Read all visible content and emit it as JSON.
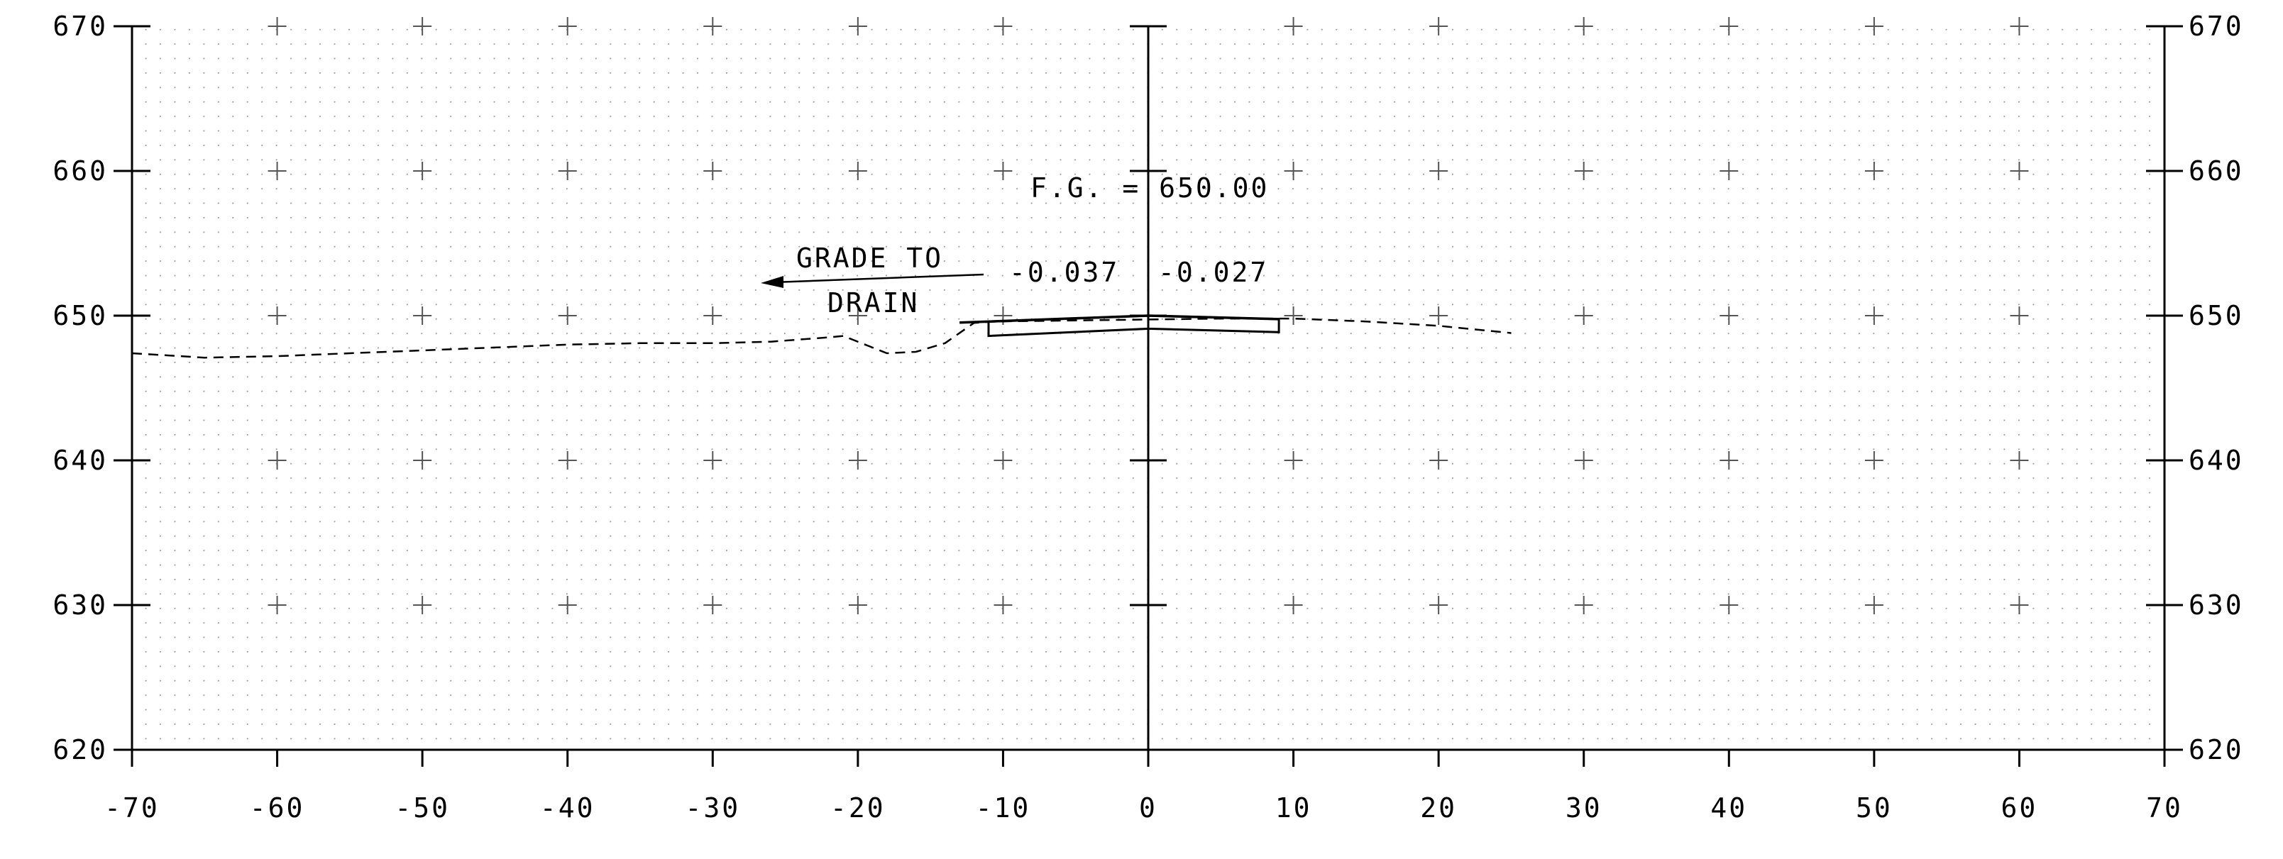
{
  "chart_data": {
    "type": "cross-section",
    "x_range": [
      -70,
      70
    ],
    "y_range": [
      620,
      670
    ],
    "x_ticks": [
      -70,
      -60,
      -50,
      -40,
      -30,
      -20,
      -10,
      0,
      10,
      20,
      30,
      40,
      50,
      60,
      70
    ],
    "y_ticks": [
      620,
      630,
      640,
      650,
      660,
      670
    ],
    "grid": "dotted minor grid with plus markers at major intersections",
    "existing_ground": [
      [
        -70,
        647.4
      ],
      [
        -65,
        647.1
      ],
      [
        -60,
        647.2
      ],
      [
        -55,
        647.4
      ],
      [
        -50,
        647.6
      ],
      [
        -45,
        647.8
      ],
      [
        -40,
        648.0
      ],
      [
        -35,
        648.1
      ],
      [
        -30,
        648.1
      ],
      [
        -26,
        648.2
      ],
      [
        -22,
        648.5
      ],
      [
        -21,
        648.6
      ],
      [
        -19,
        647.8
      ],
      [
        -18,
        647.4
      ],
      [
        -16,
        647.5
      ],
      [
        -14,
        648.1
      ],
      [
        -12,
        649.5
      ],
      [
        -10.5,
        649.6
      ],
      [
        5,
        649.8
      ],
      [
        10,
        649.8
      ],
      [
        15,
        649.6
      ],
      [
        20,
        649.3
      ],
      [
        25,
        648.8
      ]
    ],
    "finished_grade": [
      [
        -13,
        649.52
      ],
      [
        0,
        650.0
      ],
      [
        9,
        649.76
      ]
    ],
    "pavement_left": [
      [
        -11,
        649.59
      ],
      [
        0,
        650.0
      ],
      [
        0,
        649.1
      ],
      [
        -11,
        648.6
      ]
    ],
    "pavement_right": [
      [
        0,
        650.0
      ],
      [
        9,
        649.76
      ],
      [
        9,
        648.86
      ],
      [
        0,
        649.1
      ]
    ],
    "annotations": {
      "fg_label": "F.G. = 650.00",
      "slope_left": "-0.037",
      "slope_right": "-0.027",
      "grade_line1": "GRADE TO",
      "grade_line2": "DRAIN"
    },
    "colors": {
      "ink": "#000000",
      "grid_dots": "#9a9a9a"
    }
  }
}
